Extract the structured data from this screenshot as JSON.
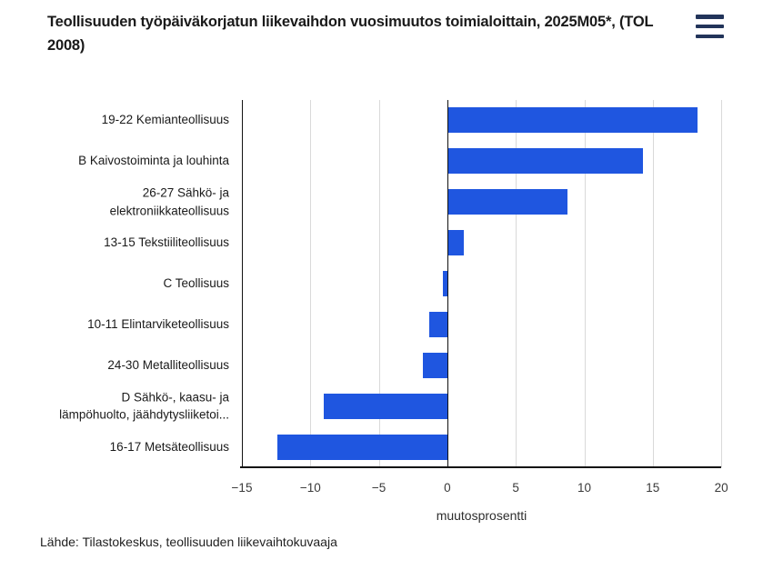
{
  "header": {
    "title_display": "Teollisuuden työpäiväkorjatun liikevaihdon vuosimuutos toimialoittain, 2025M05*, (TOL\n2008)"
  },
  "footer": {
    "source": "Lähde: Tilastokeskus, teollisuuden liikevaihtokuvaaja"
  },
  "colors": {
    "bar": "#1f56e0",
    "axis_line": "#121212",
    "gridline": "#d9d9d9",
    "menu_icon": "#22345a",
    "title_text": "#1a1a1a"
  },
  "icons": {
    "menu": "hamburger-menu-icon"
  },
  "chart_data": {
    "type": "bar",
    "orientation": "horizontal",
    "title": "Teollisuuden työpäiväkorjatun liikevaihdon vuosimuutos toimialoittain, 2025M05*, (TOL 2008)",
    "categories": [
      "19-22 Kemianteollisuus",
      "B Kaivostoiminta ja louhinta",
      "26-27 Sähkö- ja elektroniikkateollisuus",
      "13-15 Tekstiiliteollisuus",
      "C Teollisuus",
      "10-11 Elintarviketeollisuus",
      "24-30 Metalliteollisuus",
      "D Sähkö-, kaasu- ja lämpöhuolto, jäähdytysliiketoi...",
      "16-17 Metsäteollisuus"
    ],
    "category_display_lines": [
      [
        "19-22 Kemianteollisuus"
      ],
      [
        "B Kaivostoiminta ja louhinta"
      ],
      [
        "26-27 Sähkö- ja",
        "elektroniikkateollisuus"
      ],
      [
        "13-15 Tekstiiliteollisuus"
      ],
      [
        "C Teollisuus"
      ],
      [
        "10-11 Elintarviketeollisuus"
      ],
      [
        "24-30 Metalliteollisuus"
      ],
      [
        "D Sähkö-, kaasu- ja",
        "lämpöhuolto, jäähdytysliiketoi..."
      ],
      [
        "16-17 Metsäteollisuus"
      ]
    ],
    "values": [
      18.3,
      14.3,
      8.8,
      1.2,
      -0.3,
      -1.3,
      -1.8,
      -9.0,
      -12.4
    ],
    "xlabel": "muutosprosentti",
    "xlim": [
      -15,
      20
    ],
    "xticks": [
      -15,
      -10,
      -5,
      0,
      5,
      10,
      15,
      20
    ],
    "xtick_labels": [
      "−15",
      "−10",
      "−5",
      "0",
      "5",
      "10",
      "15",
      "20"
    ],
    "grid": "vertical-gridlines",
    "legend": false
  }
}
